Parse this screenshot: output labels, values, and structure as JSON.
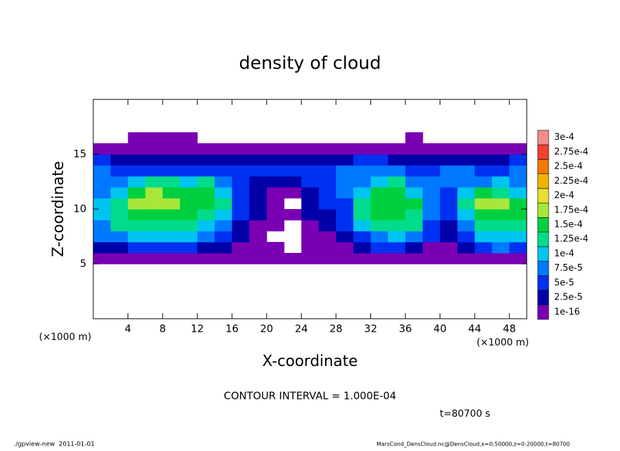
{
  "chart_data": {
    "type": "heatmap",
    "title": "density of cloud",
    "xlabel": "X-coordinate",
    "ylabel": "Z-coordinate",
    "xunit": "(×1000 m)",
    "yunit": "(×1000 m)",
    "contour_note": "CONTOUR INTERVAL = 1.000E-04",
    "time_label": "t=80700 s",
    "footer_left": "./gpview-new  2011-01-01",
    "footer_right": "MarsCond_DensCloud.nc@DensCloud,x=0:50000,z=0:20000,t=80700",
    "xlim": [
      0,
      50
    ],
    "ylim": [
      0,
      20
    ],
    "xticks": [
      4,
      8,
      12,
      16,
      20,
      24,
      28,
      32,
      36,
      40,
      44,
      48
    ],
    "yticks": [
      5,
      10,
      15
    ],
    "xbins": [
      0,
      2,
      4,
      6,
      8,
      10,
      12,
      14,
      16,
      18,
      20,
      22,
      24,
      26,
      28,
      30,
      32,
      34,
      36,
      38,
      40,
      42,
      44,
      46,
      48,
      50
    ],
    "ybins": [
      5,
      6,
      7,
      8,
      9,
      10,
      11,
      12,
      13,
      14,
      15,
      16,
      17
    ],
    "levels": [
      {
        "value": 1e-16,
        "label": "1e-16"
      },
      {
        "value": 2.5e-05,
        "label": "2.5e-5"
      },
      {
        "value": 5e-05,
        "label": "5e-5"
      },
      {
        "value": 7.5e-05,
        "label": "7.5e-5"
      },
      {
        "value": 0.0001,
        "label": "1e-4"
      },
      {
        "value": 0.000125,
        "label": "1.25e-4"
      },
      {
        "value": 0.00015,
        "label": "1.5e-4"
      },
      {
        "value": 0.000175,
        "label": "1.75e-4"
      },
      {
        "value": 0.0002,
        "label": "2e-4"
      },
      {
        "value": 0.000225,
        "label": "2.25e-4"
      },
      {
        "value": 0.00025,
        "label": "2.5e-4"
      },
      {
        "value": 0.000275,
        "label": "2.75e-4"
      },
      {
        "value": 0.0003,
        "label": "3e-4"
      }
    ],
    "colors": [
      "#7a00b4",
      "#0000a8",
      "#0030f0",
      "#0078ff",
      "#00c4f0",
      "#00dc8c",
      "#00d040",
      "#a8e63c",
      "#e8e030",
      "#f0b400",
      "#f07800",
      "#f04030",
      "#f08c8c"
    ],
    "values": [
      [
        1e-05,
        1e-05,
        1e-05,
        1e-05,
        1e-05,
        1e-05,
        1e-05,
        1e-05,
        1e-05,
        1e-05,
        1e-05,
        1e-05,
        1e-05,
        1e-05,
        1e-05,
        1e-05,
        1e-05,
        1e-05,
        1e-05,
        1e-05,
        1e-05,
        1e-05,
        1e-05,
        1e-05,
        1e-05
      ],
      [
        3e-05,
        4e-05,
        6e-05,
        6e-05,
        6e-05,
        6e-05,
        4e-05,
        3e-05,
        1e-05,
        1e-05,
        1e-05,
        null,
        1e-05,
        1e-05,
        1e-05,
        4e-05,
        6e-05,
        6e-05,
        4e-05,
        1e-05,
        1e-05,
        3e-05,
        6e-05,
        8e-05,
        6e-05
      ],
      [
        8e-05,
        9e-05,
        0.00011,
        0.00011,
        0.00011,
        0.0001,
        9e-05,
        6e-05,
        3e-05,
        1e-05,
        null,
        null,
        1e-05,
        2e-05,
        3e-05,
        6e-05,
        9e-05,
        0.00011,
        9e-05,
        5e-05,
        3e-05,
        6e-05,
        0.00011,
        0.00012,
        0.0001
      ],
      [
        9e-05,
        0.00013,
        0.00014,
        0.00014,
        0.00014,
        0.00013,
        0.00011,
        8e-05,
        4e-05,
        2e-05,
        1e-05,
        null,
        2e-05,
        3e-05,
        5e-05,
        0.00012,
        0.00014,
        0.00014,
        0.00013,
        6e-05,
        4e-05,
        9e-05,
        0.00014,
        0.00014,
        0.00013
      ],
      [
        0.0001,
        0.00014,
        0.00016,
        0.00017,
        0.00016,
        0.00016,
        0.00014,
        0.00012,
        6e-05,
        3e-05,
        1e-05,
        1e-05,
        3e-05,
        4e-05,
        6e-05,
        0.00014,
        0.00016,
        0.00016,
        0.00014,
        8e-05,
        5e-05,
        0.00012,
        0.00016,
        0.00016,
        0.00015
      ],
      [
        0.0001,
        0.00013,
        0.00018,
        0.00018,
        0.00018,
        0.00017,
        0.00016,
        0.00014,
        6e-05,
        3e-05,
        1e-05,
        null,
        3e-05,
        5e-05,
        7e-05,
        0.00013,
        0.00016,
        0.00016,
        0.00015,
        9e-05,
        6e-05,
        0.00013,
        0.00018,
        0.00018,
        0.00016
      ],
      [
        9e-05,
        0.00011,
        0.00015,
        0.00018,
        0.00017,
        0.00016,
        0.00017,
        0.0001,
        5e-05,
        3e-05,
        1e-05,
        1e-05,
        4e-05,
        6e-05,
        9e-05,
        0.0001,
        0.00015,
        0.00015,
        0.00012,
        8e-05,
        7e-05,
        0.0001,
        0.00015,
        0.00014,
        0.00012
      ],
      [
        8e-05,
        9e-05,
        0.0001,
        0.00013,
        0.00013,
        0.00011,
        0.00013,
        8e-05,
        5e-05,
        4e-05,
        3e-05,
        3e-05,
        5e-05,
        7e-05,
        8e-05,
        9e-05,
        0.00012,
        0.00013,
        9e-05,
        8e-05,
        8e-05,
        9e-05,
        9e-05,
        0.0001,
        9e-05
      ],
      [
        8e-05,
        7e-05,
        6e-05,
        7e-05,
        7e-05,
        6e-05,
        6e-05,
        6e-05,
        5e-05,
        5e-05,
        5e-05,
        5e-05,
        6e-05,
        7e-05,
        8e-05,
        9e-05,
        9e-05,
        8e-05,
        7e-05,
        7e-05,
        8e-05,
        8e-05,
        7e-05,
        7e-05,
        9e-05
      ],
      [
        5e-05,
        4e-05,
        3e-05,
        3e-05,
        4e-05,
        4e-05,
        3e-05,
        3e-05,
        3e-05,
        3e-05,
        3e-05,
        3e-05,
        3e-05,
        3e-05,
        4e-05,
        5e-05,
        5e-05,
        4e-05,
        3e-05,
        3e-05,
        3e-05,
        3e-05,
        3e-05,
        4e-05,
        6e-05
      ],
      [
        1e-05,
        1e-05,
        1e-05,
        1e-05,
        1e-05,
        1e-05,
        1e-05,
        1e-05,
        1e-05,
        1e-05,
        1e-05,
        1e-05,
        1e-05,
        1e-05,
        1e-05,
        1e-05,
        1e-05,
        1e-05,
        1e-05,
        1e-05,
        1e-05,
        1e-05,
        1e-05,
        1e-05,
        1e-05
      ],
      [
        null,
        null,
        1e-05,
        1e-05,
        1e-05,
        1e-05,
        null,
        null,
        null,
        null,
        null,
        null,
        null,
        null,
        null,
        null,
        null,
        null,
        1e-05,
        null,
        null,
        null,
        null,
        null,
        null
      ]
    ]
  }
}
